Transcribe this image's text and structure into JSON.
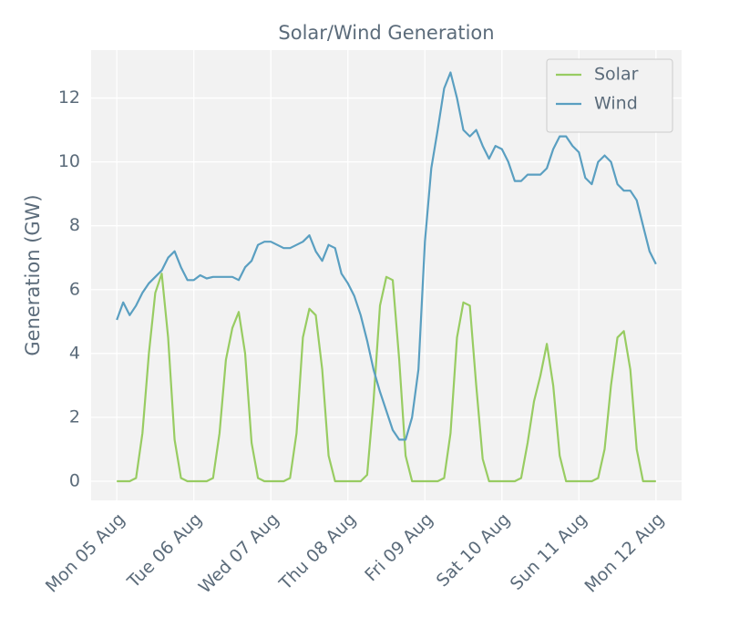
{
  "chart_data": {
    "type": "line",
    "title": "Solar/Wind Generation",
    "y_label": "Generation (GW)",
    "x": [
      0,
      2,
      4,
      6,
      8,
      10,
      12,
      14,
      16,
      18,
      20,
      22,
      24,
      26,
      28,
      30,
      32,
      34,
      36,
      38,
      40,
      42,
      44,
      46,
      48,
      50,
      52,
      54,
      56,
      58,
      60,
      62,
      64,
      66,
      68,
      70,
      72,
      74,
      76,
      78,
      80,
      82,
      84,
      86,
      88,
      90,
      92,
      94,
      96,
      98,
      100,
      102,
      104,
      106,
      108,
      110,
      112,
      114,
      116,
      118,
      120,
      122,
      124,
      126,
      128,
      130,
      132,
      134,
      136,
      138,
      140,
      142,
      144,
      146,
      148,
      150,
      152,
      154,
      156,
      158,
      160,
      162,
      164,
      166,
      168
    ],
    "series": [
      {
        "name": "Solar",
        "color": "#98cc62",
        "values": [
          0,
          0,
          0,
          0.1,
          1.5,
          4.0,
          5.9,
          6.5,
          4.5,
          1.3,
          0.1,
          0,
          0,
          0,
          0,
          0.1,
          1.5,
          3.8,
          4.8,
          5.3,
          4.0,
          1.2,
          0.1,
          0,
          0,
          0,
          0,
          0.1,
          1.5,
          4.5,
          5.4,
          5.2,
          3.5,
          0.8,
          0,
          0,
          0,
          0,
          0,
          0.2,
          2.5,
          5.5,
          6.4,
          6.3,
          3.8,
          0.8,
          0,
          0,
          0,
          0,
          0,
          0.1,
          1.5,
          4.5,
          5.6,
          5.5,
          3.0,
          0.7,
          0,
          0,
          0,
          0,
          0,
          0.1,
          1.2,
          2.5,
          3.3,
          4.3,
          3.0,
          0.8,
          0,
          0,
          0,
          0,
          0,
          0.1,
          1.0,
          3.0,
          4.5,
          4.7,
          3.5,
          1.0,
          0,
          0,
          0
        ]
      },
      {
        "name": "Wind",
        "color": "#5a9fc1",
        "values": [
          5.05,
          5.6,
          5.2,
          5.5,
          5.9,
          6.2,
          6.4,
          6.6,
          7.0,
          7.2,
          6.7,
          6.3,
          6.3,
          6.45,
          6.35,
          6.4,
          6.4,
          6.4,
          6.4,
          6.3,
          6.7,
          6.9,
          7.4,
          7.5,
          7.5,
          7.4,
          7.3,
          7.3,
          7.4,
          7.5,
          7.7,
          7.2,
          6.9,
          7.4,
          7.3,
          6.5,
          6.2,
          5.8,
          5.2,
          4.4,
          3.5,
          2.8,
          2.2,
          1.6,
          1.3,
          1.3,
          2.0,
          3.5,
          7.5,
          9.8,
          11.0,
          12.3,
          12.8,
          12.0,
          11.0,
          10.8,
          11.0,
          10.5,
          10.1,
          10.5,
          10.4,
          10.0,
          9.4,
          9.4,
          9.6,
          9.6,
          9.6,
          9.8,
          10.4,
          10.8,
          10.8,
          10.5,
          10.3,
          9.5,
          9.3,
          10.0,
          10.2,
          10.0,
          9.3,
          9.1,
          9.1,
          8.8,
          8.0,
          7.2,
          6.8
        ]
      }
    ],
    "xlim": [
      -8,
      176
    ],
    "xticks": [
      {
        "value": 0,
        "label": "Mon 05 Aug"
      },
      {
        "value": 24,
        "label": "Tue 06 Aug"
      },
      {
        "value": 48,
        "label": "Wed 07 Aug"
      },
      {
        "value": 72,
        "label": "Thu 08 Aug"
      },
      {
        "value": 96,
        "label": "Fri 09 Aug"
      },
      {
        "value": 120,
        "label": "Sat 10 Aug"
      },
      {
        "value": 144,
        "label": "Sun 11 Aug"
      },
      {
        "value": 168,
        "label": "Mon 12 Aug"
      }
    ],
    "ylim": [
      -0.6,
      13.5
    ],
    "yticks": [
      0,
      2,
      4,
      6,
      8,
      10,
      12
    ],
    "grid": true,
    "legend": "upper right"
  }
}
